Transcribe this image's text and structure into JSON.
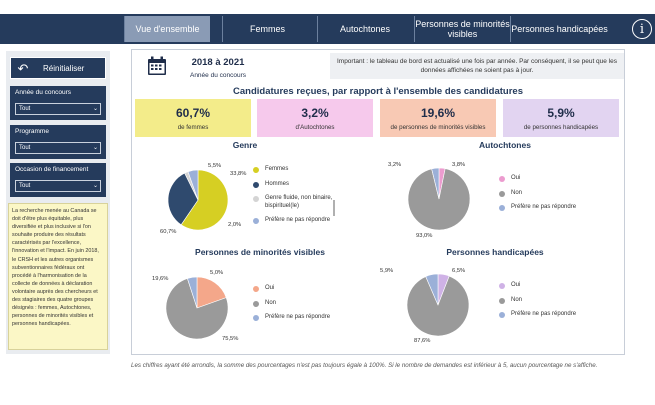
{
  "nav": {
    "tabs": [
      {
        "label": "Vue d'ensemble"
      },
      {
        "label": "Femmes"
      },
      {
        "label": "Autochtones"
      },
      {
        "label": "Personnes de minorités visibles"
      },
      {
        "label": "Personnes handicapées"
      }
    ],
    "info_label": "i"
  },
  "sidebar": {
    "reset_label": "Réinitialiser",
    "filters": [
      {
        "label": "Année du concours",
        "value": "Tout"
      },
      {
        "label": "Programme",
        "value": "Tout"
      },
      {
        "label": "Occasion de financement",
        "value": "Tout"
      }
    ],
    "note": "La recherche menée au Canada se doit d'être plus équitable, plus diversifiée et plus inclusive si l'on souhaite produire des résultats caractérisés par l'excellence, l'innovation et l'impact. En juin 2018, le CRSH et les autres organismes subventionnaires fédéraux ont procédé à l'harmonisation de la collecte de données à déclaration volontaire auprès des chercheurs et des stagiaires des quatre groupes désignés : femmes, Autochtones, personnes de minorités visibles et personnes handicapées."
  },
  "header": {
    "period": "2018 à 2021",
    "period_sub": "Année du concours",
    "notice": "Important : le tableau de bord est actualisé une fois par année. Par conséquent, il se peut que les données affichées ne soient pas à jour.",
    "section_title": "Candidatures reçues, par rapport à l'ensemble des candidatures"
  },
  "kpis": [
    {
      "value": "60,7%",
      "caption": "de femmes",
      "color": "#f3ec8a"
    },
    {
      "value": "3,2%",
      "caption": "d'Autochtones",
      "color": "#f6c9ec"
    },
    {
      "value": "19,6%",
      "caption": "de personnes de minorités visibles",
      "color": "#f8c9b4"
    },
    {
      "value": "5,9%",
      "caption": "de personnes handicapées",
      "color": "#e2d4f1"
    }
  ],
  "charts": {
    "genre": {
      "title": "Genre",
      "legend": [
        "Femmes",
        "Hommes",
        "Genre fluide, non binaire, bispirituel(le)",
        "Préfère ne pas répondre"
      ],
      "labels": [
        "5,5%",
        "33,8%",
        "2,0%",
        "60,7%"
      ]
    },
    "autochtones": {
      "title": "Autochtones",
      "legend": [
        "Oui",
        "Non",
        "Préfère ne pas répondre"
      ],
      "labels": [
        "3,2%",
        "3,8%",
        "93,0%"
      ]
    },
    "minorites": {
      "title": "Personnes de minorités visibles",
      "legend": [
        "Oui",
        "Non",
        "Préfère ne pas répondre"
      ],
      "labels": [
        "19,6%",
        "5,0%",
        "75,5%"
      ]
    },
    "handicap": {
      "title": "Personnes handicapées",
      "legend": [
        "Oui",
        "Non",
        "Préfère ne pas répondre"
      ],
      "labels": [
        "5,9%",
        "6,5%",
        "87,6%"
      ]
    }
  },
  "chart_data": [
    {
      "type": "pie",
      "title": "Genre",
      "categories": [
        "Femmes",
        "Hommes",
        "Genre fluide, non binaire, bispirituel(le)",
        "Préfère ne pas répondre"
      ],
      "values": [
        60.7,
        33.8,
        2.0,
        5.5
      ],
      "colors": [
        "#d6cf23",
        "#2f4a6e",
        "#d4d4d4",
        "#9bb0d8"
      ]
    },
    {
      "type": "pie",
      "title": "Autochtones",
      "categories": [
        "Oui",
        "Non",
        "Préfère ne pas répondre"
      ],
      "values": [
        3.2,
        93.0,
        3.8
      ],
      "colors": [
        "#ec9ccf",
        "#9a9a9a",
        "#9bb0d8"
      ]
    },
    {
      "type": "pie",
      "title": "Personnes de minorités visibles",
      "categories": [
        "Oui",
        "Non",
        "Préfère ne pas répondre"
      ],
      "values": [
        19.6,
        75.5,
        5.0
      ],
      "colors": [
        "#f4a78a",
        "#9a9a9a",
        "#9bb0d8"
      ]
    },
    {
      "type": "pie",
      "title": "Personnes handicapées",
      "categories": [
        "Oui",
        "Non",
        "Préfère ne pas répondre"
      ],
      "values": [
        5.9,
        87.6,
        6.5
      ],
      "colors": [
        "#cfb2e6",
        "#9a9a9a",
        "#9bb0d8"
      ]
    }
  ],
  "footnote": "Les chiffres ayant été arrondis, la somme des pourcentages n'est pas toujours égale à 100%. Si le nombre de demandes est inférieur à 5, aucun pourcentage ne s'affiche."
}
